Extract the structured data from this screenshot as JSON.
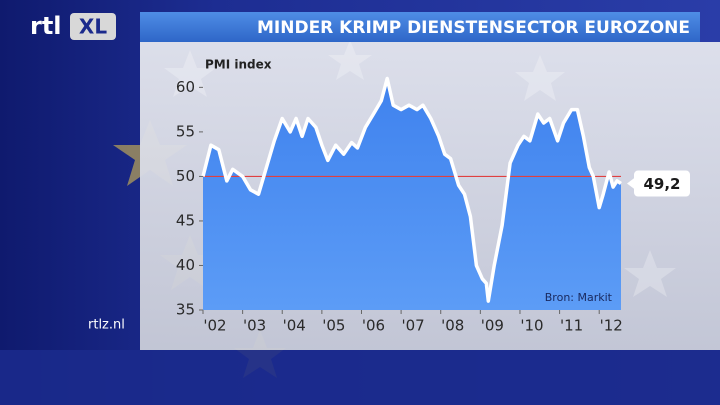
{
  "logo": {
    "main": "rtl",
    "badge": "XL"
  },
  "site": "rtlz.nl",
  "chart_data": {
    "type": "area-line",
    "title": "MINDER KRIMP DIENSTENSECTOR EUROZONE",
    "y_label": "PMI index",
    "source": "Bron: Markit",
    "x": [
      2002.0,
      2002.2,
      2002.4,
      2002.6,
      2002.75,
      2003.0,
      2003.2,
      2003.4,
      2003.6,
      2003.8,
      2004.0,
      2004.2,
      2004.35,
      2004.5,
      2004.65,
      2004.85,
      2005.0,
      2005.15,
      2005.35,
      2005.55,
      2005.75,
      2005.9,
      2006.1,
      2006.3,
      2006.5,
      2006.65,
      2006.8,
      2007.0,
      2007.2,
      2007.4,
      2007.55,
      2007.75,
      2007.95,
      2008.1,
      2008.25,
      2008.45,
      2008.6,
      2008.75,
      2008.9,
      2009.05,
      2009.15,
      2009.2,
      2009.35,
      2009.55,
      2009.75,
      2009.95,
      2010.1,
      2010.25,
      2010.45,
      2010.6,
      2010.75,
      2010.95,
      2011.1,
      2011.3,
      2011.45,
      2011.6,
      2011.75,
      2011.85,
      2012.0,
      2012.1,
      2012.25,
      2012.35,
      2012.45,
      2012.55
    ],
    "values": [
      50,
      53.5,
      53,
      49.5,
      50.8,
      50,
      48.5,
      48,
      51,
      54,
      56.5,
      55,
      56.5,
      54.5,
      56.5,
      55.5,
      53.5,
      51.8,
      53.5,
      52.5,
      53.8,
      53.2,
      55.5,
      57,
      58.5,
      61,
      58,
      57.5,
      58,
      57.5,
      58,
      56.5,
      54.5,
      52.5,
      52,
      49,
      48,
      45.5,
      40,
      38.5,
      38,
      36,
      40,
      44.5,
      51.5,
      53.5,
      54.5,
      54,
      57,
      56,
      56.5,
      54,
      56,
      57.5,
      57.5,
      54.5,
      51,
      50,
      46.5,
      48,
      50.5,
      48.8,
      49.5,
      49.2
    ],
    "value_labels": [
      null,
      null,
      null,
      null,
      null,
      null,
      null,
      null,
      null,
      null,
      null,
      null,
      null,
      null,
      null,
      null,
      null,
      null,
      null,
      null,
      null,
      null,
      null,
      null,
      null,
      null,
      null,
      null,
      null,
      null,
      null,
      null,
      null,
      null,
      null,
      null,
      null,
      null,
      null,
      null,
      null,
      null,
      null,
      null,
      null,
      null,
      null,
      null,
      null,
      null,
      null,
      null,
      null,
      null,
      null,
      null,
      null,
      null,
      null,
      null,
      null,
      null,
      null,
      "49,2"
    ],
    "color": "#ffffff",
    "area_color": "#4a8cf0",
    "reference_line": 50,
    "reference_color": "#e04040",
    "xlim": [
      2002,
      2012.55
    ],
    "xticks": [
      {
        "value": 2002,
        "label": "'02"
      },
      {
        "value": 2003,
        "label": "'03"
      },
      {
        "value": 2004,
        "label": "'04"
      },
      {
        "value": 2005,
        "label": "'05"
      },
      {
        "value": 2006,
        "label": "'06"
      },
      {
        "value": 2007,
        "label": "'07"
      },
      {
        "value": 2008,
        "label": "'08"
      },
      {
        "value": 2009,
        "label": "'09"
      },
      {
        "value": 2010,
        "label": "'10"
      },
      {
        "value": 2011,
        "label": "'11"
      },
      {
        "value": 2012,
        "label": "'12"
      }
    ],
    "ylim": [
      35,
      61.5
    ],
    "yticks": [
      35,
      40,
      45,
      50,
      55,
      60
    ]
  }
}
